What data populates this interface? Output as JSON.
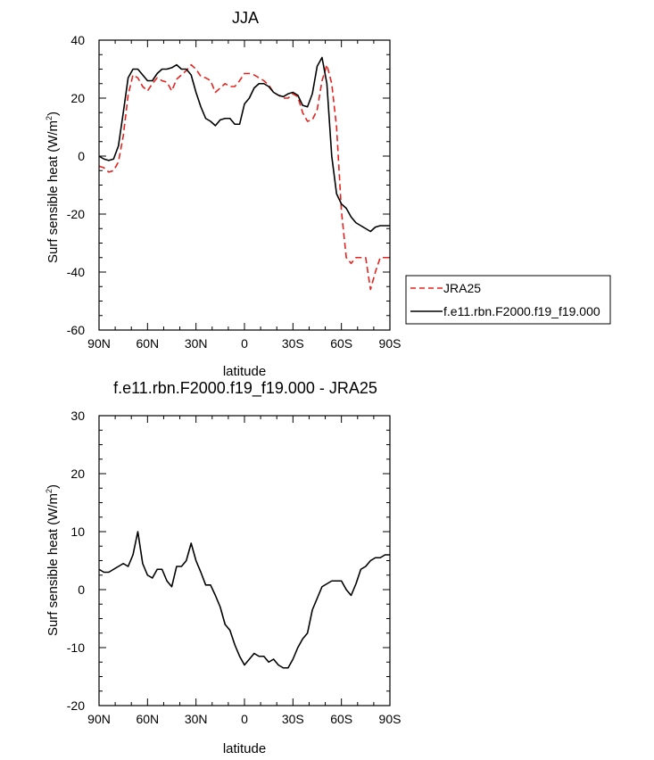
{
  "chart_data": [
    {
      "type": "line",
      "title": "JJA",
      "xlabel": "latitude",
      "ylabel": "Surf sensible heat (W/m",
      "ylabel_sup": "2",
      "ylabel_close": ")",
      "xlim": [
        90,
        -90
      ],
      "ylim": [
        -60,
        40
      ],
      "xticks": [
        90,
        60,
        30,
        0,
        -30,
        -60,
        -90
      ],
      "xtick_labels": [
        "90N",
        "60N",
        "30N",
        "0",
        "30S",
        "60S",
        "90S"
      ],
      "yticks": [
        -60,
        -40,
        -20,
        0,
        20,
        40
      ],
      "ytick_labels": [
        "-60",
        "-40",
        "-20",
        "0",
        "20",
        "40"
      ],
      "legend_placement": "right-outside",
      "series": [
        {
          "name": "JRA25",
          "color": "#e8221e",
          "dash": "dashed",
          "x": [
            90,
            87,
            84,
            81,
            78,
            75,
            72,
            69,
            66,
            63,
            60,
            57,
            54,
            51,
            48,
            45,
            42,
            39,
            36,
            33,
            30,
            27,
            24,
            21,
            18,
            15,
            12,
            9,
            6,
            3,
            0,
            -3,
            -6,
            -9,
            -12,
            -15,
            -18,
            -21,
            -24,
            -27,
            -30,
            -33,
            -36,
            -39,
            -42,
            -45,
            -48,
            -51,
            -54,
            -57,
            -60,
            -63,
            -66,
            -69,
            -72,
            -75,
            -78,
            -81,
            -84,
            -87,
            -90
          ],
          "y": [
            -3.5,
            -4,
            -5.5,
            -5,
            -2,
            7,
            21,
            28,
            27,
            24,
            22.5,
            25,
            27,
            26,
            25.5,
            22.5,
            26.5,
            28,
            29.5,
            31.5,
            30,
            27.5,
            27,
            26,
            22,
            23.5,
            25,
            24,
            24,
            26,
            28.5,
            28.5,
            28,
            27,
            26,
            24.5,
            22,
            21,
            20,
            20,
            21.5,
            20.5,
            15,
            12,
            12.5,
            16,
            26,
            31.5,
            25,
            10,
            -19,
            -35,
            -37,
            -35,
            -35,
            -35,
            -46,
            -40,
            -35,
            -35,
            -35
          ]
        },
        {
          "name": "f.e11.rbn.F2000.f19_f19.000",
          "color": "#000000",
          "dash": "solid",
          "x": [
            90,
            87,
            84,
            81,
            78,
            75,
            72,
            69,
            66,
            63,
            60,
            57,
            54,
            51,
            48,
            45,
            42,
            39,
            36,
            33,
            30,
            27,
            24,
            21,
            18,
            15,
            12,
            9,
            6,
            3,
            0,
            -3,
            -6,
            -9,
            -12,
            -15,
            -18,
            -21,
            -24,
            -27,
            -30,
            -33,
            -36,
            -39,
            -42,
            -45,
            -48,
            -51,
            -54,
            -57,
            -60,
            -63,
            -66,
            -69,
            -72,
            -75,
            -78,
            -81,
            -84,
            -87,
            -90
          ],
          "y": [
            0,
            -1,
            -1.5,
            -1,
            3.5,
            15,
            27,
            30,
            30,
            28,
            26,
            26,
            28.5,
            30,
            30,
            30.5,
            31.5,
            30,
            30,
            28,
            22,
            17,
            13,
            12,
            10.5,
            12.5,
            13,
            13,
            11,
            11,
            18,
            20,
            23.5,
            25,
            25,
            24,
            22,
            21,
            20.5,
            21.5,
            22,
            21,
            17.5,
            17,
            21.5,
            31,
            34,
            25,
            0,
            -13,
            -16.5,
            -18,
            -21,
            -23,
            -24,
            -25,
            -26,
            -24.5,
            -24,
            -24,
            -24
          ]
        }
      ]
    },
    {
      "type": "line",
      "title": "f.e11.rbn.F2000.f19_f19.000 - JRA25",
      "xlabel": "latitude",
      "ylabel": "Surf sensible heat (W/m",
      "ylabel_sup": "2",
      "ylabel_close": ")",
      "xlim": [
        90,
        -90
      ],
      "ylim": [
        -20,
        30
      ],
      "xticks": [
        90,
        60,
        30,
        0,
        -30,
        -60,
        -90
      ],
      "xtick_labels": [
        "90N",
        "60N",
        "30N",
        "0",
        "30S",
        "60S",
        "90S"
      ],
      "yticks": [
        -20,
        -10,
        0,
        10,
        20,
        30
      ],
      "ytick_labels": [
        "-20",
        "-10",
        "0",
        "10",
        "20",
        "30"
      ],
      "series": [
        {
          "color": "#000000",
          "dash": "solid",
          "x": [
            90,
            87,
            84,
            81,
            78,
            75,
            72,
            69,
            66,
            63,
            60,
            57,
            54,
            51,
            48,
            45,
            42,
            39,
            36,
            33,
            30,
            27,
            24,
            21,
            18,
            15,
            12,
            9,
            6,
            3,
            0,
            -3,
            -6,
            -9,
            -12,
            -15,
            -18,
            -21,
            -24,
            -27,
            -30,
            -33,
            -36,
            -39,
            -42,
            -45,
            -48,
            -51,
            -54,
            -57,
            -60,
            -63,
            -66,
            -69,
            -72,
            -75,
            -78,
            -81,
            -84,
            -87,
            -90
          ],
          "y": [
            3.5,
            3,
            3,
            3.5,
            4,
            4.5,
            4,
            6,
            10,
            4.5,
            2.5,
            2,
            3.5,
            3.5,
            1.5,
            0.5,
            4,
            4,
            5,
            8,
            5,
            3,
            0.8,
            0.8,
            -1,
            -3,
            -6,
            -7,
            -9.5,
            -11.5,
            -13,
            -12,
            -11,
            -11.5,
            -11.5,
            -12.5,
            -12,
            -13,
            -13.5,
            -13.5,
            -12,
            -10,
            -8.5,
            -7.5,
            -3.5,
            -1.5,
            0.5,
            1,
            1.5,
            1.5,
            1.5,
            0,
            -1,
            1,
            3.5,
            4,
            5,
            5.5,
            5.5,
            6,
            6
          ]
        }
      ]
    }
  ]
}
